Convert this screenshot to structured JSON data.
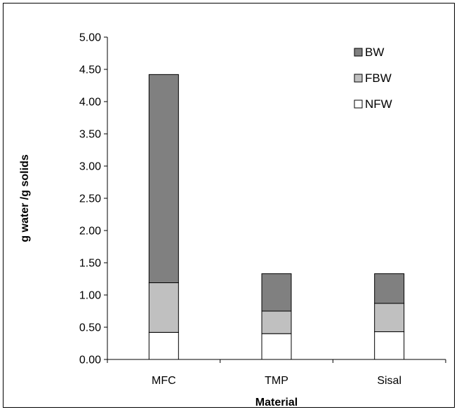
{
  "chart_data": {
    "type": "bar",
    "stacked": true,
    "title": "",
    "xlabel": "Material",
    "ylabel": "g water /g solids",
    "categories": [
      "MFC",
      "TMP",
      "Sisal"
    ],
    "series": [
      {
        "name": "NFW",
        "values": [
          0.42,
          0.4,
          0.43
        ],
        "color": "#ffffff"
      },
      {
        "name": "FBW",
        "values": [
          0.77,
          0.35,
          0.44
        ],
        "color": "#c0c0c0"
      },
      {
        "name": "BW",
        "values": [
          3.23,
          0.58,
          0.46
        ],
        "color": "#808080"
      }
    ],
    "ylim": [
      0,
      5
    ],
    "yticks": [
      "0.00",
      "0.50",
      "1.00",
      "1.50",
      "2.00",
      "2.50",
      "3.00",
      "3.50",
      "4.00",
      "4.50",
      "5.00"
    ],
    "grid": false,
    "legend_position": "top-right",
    "legend_order": [
      "BW",
      "FBW",
      "NFW"
    ]
  }
}
